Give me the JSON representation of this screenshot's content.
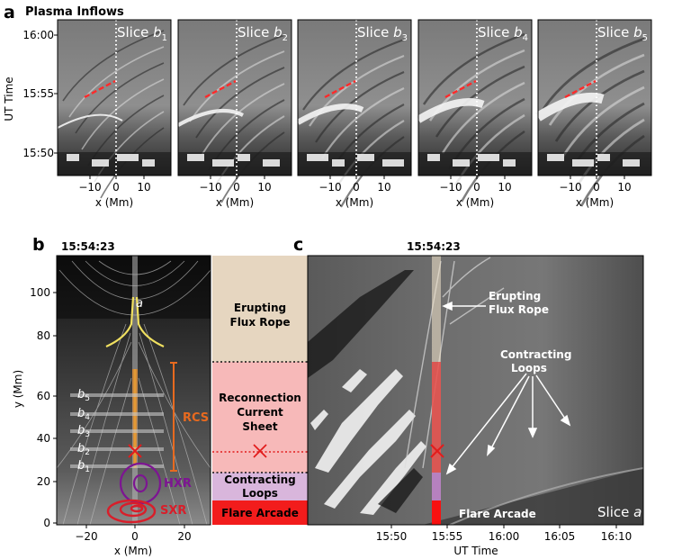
{
  "panel_a": {
    "letter": "a",
    "heading": "Plasma Inflows",
    "ylabel": "UT Time",
    "yticks": [
      "16:00",
      "15:55",
      "15:50"
    ],
    "xlabel": "x (Mm)",
    "xticks": [
      "−10",
      "0",
      "10"
    ],
    "slice_word": "Slice",
    "slices": [
      "b",
      "b",
      "b",
      "b",
      "b"
    ],
    "slice_subs": [
      "1",
      "2",
      "3",
      "4",
      "5"
    ]
  },
  "panel_b": {
    "letter": "b",
    "time": "15:54:23",
    "ylabel": "y (Mm)",
    "yticks": [
      "0",
      "20",
      "40",
      "60",
      "80",
      "100"
    ],
    "xlabel": "x (Mm)",
    "xticks": [
      "−20",
      "0",
      "20"
    ],
    "slit_label": "a",
    "b_labels": [
      "b",
      "b",
      "b",
      "b",
      "b"
    ],
    "b_subs": [
      "5",
      "4",
      "3",
      "2",
      "1"
    ],
    "rcs": "RCS",
    "hxr": "HXR",
    "sxr": "SXR",
    "legend": {
      "erupting": [
        "Erupting",
        "Flux Rope"
      ],
      "reconnection": [
        "Reconnection",
        "Current",
        "Sheet"
      ],
      "contracting": [
        "Contracting",
        "Loops"
      ],
      "arcade": "Flare Arcade"
    }
  },
  "panel_c": {
    "letter": "c",
    "time": "15:54:23",
    "xlabel": "UT Time",
    "xticks": [
      "15:50",
      "15:55",
      "16:00",
      "16:05",
      "16:10"
    ],
    "erupting": [
      "Erupting",
      "Flux Rope"
    ],
    "contracting": [
      "Contracting",
      "Loops"
    ],
    "arcade": "Flare Arcade",
    "slice_word": "Slice",
    "slice_var": "a"
  },
  "colors": {
    "erupting": "#e6d6c0",
    "reconnection": "#f7b9b9",
    "contracting": "#d9b6dc",
    "arcade": "#f21c1c",
    "hxr": "#7d1592",
    "sxr": "#d81e2a",
    "rcs": "#e86a1f",
    "fieldline": "#e6d84a",
    "dash": "#ff2a2a"
  }
}
